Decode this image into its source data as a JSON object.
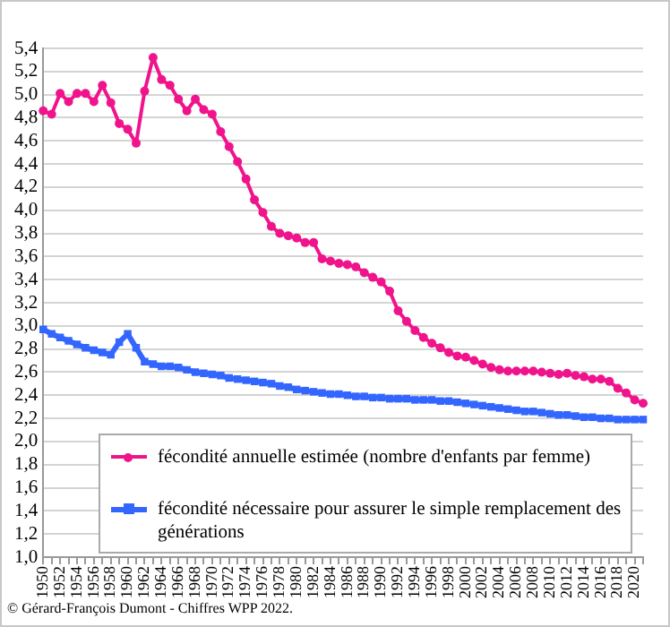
{
  "chart_data": {
    "type": "line",
    "categories": [
      "1950",
      null,
      "1952",
      null,
      "1954",
      null,
      "1956",
      null,
      "1958",
      null,
      "1960",
      null,
      "1962",
      null,
      "1964",
      null,
      "1966",
      null,
      "1968",
      null,
      "1970",
      null,
      "1972",
      null,
      "1974",
      null,
      "1976",
      null,
      "1978",
      null,
      "1980",
      null,
      "1982",
      null,
      "1984",
      null,
      "1986",
      null,
      "1988",
      null,
      "1990",
      null,
      "1992",
      null,
      "1994",
      null,
      "1996",
      null,
      "1998",
      null,
      "2000",
      null,
      "2002",
      null,
      "2004",
      null,
      "2006",
      null,
      "2008",
      null,
      "2010",
      null,
      "2012",
      null,
      "2014",
      null,
      "2016",
      null,
      "2018",
      null,
      "2020",
      null
    ],
    "series": [
      {
        "name": "fécondité annuelle estimée (nombre d'enfants par femme)",
        "color": "#f0148c",
        "marker": "circle",
        "values": [
          4.86,
          4.83,
          5.01,
          4.94,
          5.01,
          5.01,
          4.94,
          5.08,
          4.93,
          4.75,
          4.7,
          4.58,
          5.03,
          5.32,
          5.13,
          5.08,
          4.96,
          4.86,
          4.96,
          4.87,
          4.83,
          4.68,
          4.55,
          4.42,
          4.27,
          4.09,
          3.98,
          3.86,
          3.8,
          3.78,
          3.76,
          3.72,
          3.72,
          3.58,
          3.56,
          3.54,
          3.53,
          3.51,
          3.46,
          3.42,
          3.38,
          3.3,
          3.13,
          3.04,
          2.96,
          2.9,
          2.85,
          2.81,
          2.77,
          2.74,
          2.73,
          2.7,
          2.67,
          2.64,
          2.62,
          2.61,
          2.61,
          2.61,
          2.61,
          2.6,
          2.59,
          2.58,
          2.59,
          2.57,
          2.56,
          2.54,
          2.54,
          2.52,
          2.46,
          2.42,
          2.36,
          2.33
        ]
      },
      {
        "name": "fécondité nécessaire pour assurer le simple remplacement des générations",
        "color": "#3366ff",
        "marker": "square",
        "values": [
          2.97,
          2.93,
          2.9,
          2.87,
          2.84,
          2.81,
          2.79,
          2.77,
          2.75,
          2.86,
          2.93,
          2.81,
          2.69,
          2.67,
          2.65,
          2.65,
          2.64,
          2.62,
          2.6,
          2.59,
          2.58,
          2.57,
          2.55,
          2.54,
          2.53,
          2.52,
          2.51,
          2.5,
          2.48,
          2.47,
          2.45,
          2.44,
          2.43,
          2.42,
          2.41,
          2.41,
          2.4,
          2.39,
          2.39,
          2.38,
          2.38,
          2.37,
          2.37,
          2.37,
          2.36,
          2.36,
          2.36,
          2.35,
          2.35,
          2.34,
          2.33,
          2.32,
          2.31,
          2.3,
          2.29,
          2.28,
          2.27,
          2.26,
          2.26,
          2.25,
          2.24,
          2.23,
          2.23,
          2.22,
          2.21,
          2.21,
          2.2,
          2.2,
          2.19,
          2.19,
          2.19,
          2.19
        ]
      }
    ],
    "ylim": [
      1.0,
      5.4
    ],
    "yticks": [
      {
        "value": 1.0,
        "label": "1,0"
      },
      {
        "value": 1.2,
        "label": "1,2"
      },
      {
        "value": 1.4,
        "label": "1,4"
      },
      {
        "value": 1.6,
        "label": "1,6"
      },
      {
        "value": 1.8,
        "label": "1,8"
      },
      {
        "value": 2.0,
        "label": "2,0"
      },
      {
        "value": 2.2,
        "label": "2,2"
      },
      {
        "value": 2.4,
        "label": "2,4"
      },
      {
        "value": 2.6,
        "label": "2,6"
      },
      {
        "value": 2.8,
        "label": "2,8"
      },
      {
        "value": 3.0,
        "label": "3,0"
      },
      {
        "value": 3.2,
        "label": "3,2"
      },
      {
        "value": 3.4,
        "label": "3,4"
      },
      {
        "value": 3.6,
        "label": "3,6"
      },
      {
        "value": 3.8,
        "label": "3,8"
      },
      {
        "value": 4.0,
        "label": "4,0"
      },
      {
        "value": 4.2,
        "label": "4,2"
      },
      {
        "value": 4.4,
        "label": "4,4"
      },
      {
        "value": 4.6,
        "label": "4,6"
      },
      {
        "value": 4.8,
        "label": "4,8"
      },
      {
        "value": 5.0,
        "label": "5,0"
      },
      {
        "value": 5.2,
        "label": "5,2"
      },
      {
        "value": 5.4,
        "label": "5,4"
      }
    ],
    "grid": "y",
    "legend": "bottom",
    "line_style": "solid",
    "annotations": [
      "© Gérard-François Dumont - Chiffres WPP 2022."
    ]
  }
}
